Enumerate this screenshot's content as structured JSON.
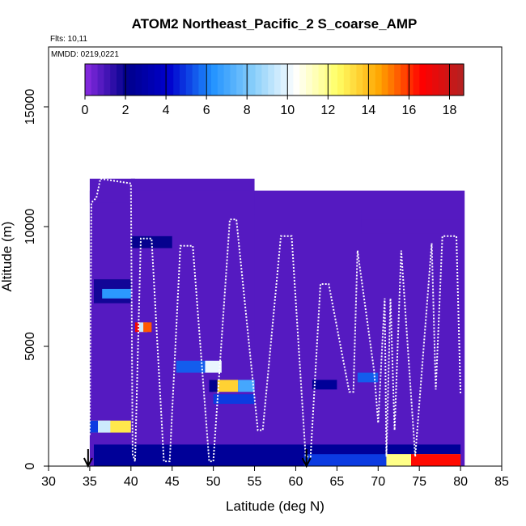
{
  "chart_data": {
    "type": "heatmap",
    "title": "ATOM2 Northeast_Pacific_2 S_coarse_AMP",
    "annotations": [
      "Flts: 10,11",
      "MMDD: 0219,0221"
    ],
    "xlabel": "Latitude (deg N)",
    "ylabel": "Altitude (m)",
    "xlim": [
      30,
      85
    ],
    "ylim": [
      0,
      17500
    ],
    "x_ticks": [
      "30",
      "35",
      "40",
      "45",
      "50",
      "55",
      "60",
      "65",
      "70",
      "75",
      "80",
      "85"
    ],
    "y_ticks": [
      "0",
      "5000",
      "10000",
      "15000"
    ],
    "colorbar": {
      "min": 0,
      "max": 18.7,
      "ticks": [
        "0",
        "2",
        "4",
        "6",
        "8",
        "10",
        "12",
        "14",
        "16",
        "18"
      ],
      "colors": [
        "#8a2be2",
        "#00008b",
        "#0000cd",
        "#1e90ff",
        "#87cefa",
        "#ffffff",
        "#ffff66",
        "#ffa500",
        "#ff0000",
        "#b22222"
      ]
    },
    "background_value": 0.8,
    "regions": [
      {
        "lat": [
          35.0,
          40.5
        ],
        "alt": [
          11000,
          12000
        ],
        "value": 0.8
      },
      {
        "lat": [
          40.5,
          55.0
        ],
        "alt": [
          10500,
          11500
        ],
        "value": 0.8
      },
      {
        "lat": [
          55.0,
          68.0
        ],
        "alt": [
          10000,
          10700
        ],
        "value": 0.8
      },
      {
        "lat": [
          68.0,
          80.0
        ],
        "alt": [
          9700,
          10300
        ],
        "value": 0.8
      },
      {
        "lat": [
          40.0,
          45.0
        ],
        "alt": [
          9100,
          9600
        ],
        "value": 2.0
      },
      {
        "lat": [
          35.5,
          40.0
        ],
        "alt": [
          6800,
          7800
        ],
        "value": 1.8
      },
      {
        "lat": [
          36.5,
          40.0
        ],
        "alt": [
          7000,
          7400
        ],
        "value": 6.5
      },
      {
        "lat": [
          40.5,
          42.5
        ],
        "alt": [
          5600,
          6000
        ],
        "value": 17.0
      },
      {
        "lat": [
          41.0,
          42.0
        ],
        "alt": [
          5600,
          6000
        ],
        "value": 9.5
      },
      {
        "lat": [
          41.5,
          42.5
        ],
        "alt": [
          5600,
          6000
        ],
        "value": 15.5
      },
      {
        "lat": [
          45.5,
          50.0
        ],
        "alt": [
          3900,
          4400
        ],
        "value": 5.5
      },
      {
        "lat": [
          49.0,
          51.0
        ],
        "alt": [
          3900,
          4400
        ],
        "value": 10.0
      },
      {
        "lat": [
          50.0,
          53.0
        ],
        "alt": [
          3100,
          3600
        ],
        "value": 13.5
      },
      {
        "lat": [
          53.0,
          55.0
        ],
        "alt": [
          3100,
          3600
        ],
        "value": 7.0
      },
      {
        "lat": [
          49.5,
          50.5
        ],
        "alt": [
          3100,
          3600
        ],
        "value": 2.0
      },
      {
        "lat": [
          50.0,
          55.0
        ],
        "alt": [
          2600,
          3000
        ],
        "value": 5.0
      },
      {
        "lat": [
          35.0,
          40.0
        ],
        "alt": [
          1400,
          1900
        ],
        "value": 13.0
      },
      {
        "lat": [
          35.0,
          36.0
        ],
        "alt": [
          1400,
          1900
        ],
        "value": 5.0
      },
      {
        "lat": [
          36.0,
          37.5
        ],
        "alt": [
          1400,
          1900
        ],
        "value": 9.5
      },
      {
        "lat": [
          67.5,
          70.0
        ],
        "alt": [
          3500,
          3900
        ],
        "value": 5.5
      },
      {
        "lat": [
          62.0,
          65.0
        ],
        "alt": [
          3200,
          3600
        ],
        "value": 2.5
      },
      {
        "lat": [
          35.5,
          80.0
        ],
        "alt": [
          0,
          900
        ],
        "value": 2.5
      },
      {
        "lat": [
          61.0,
          71.0
        ],
        "alt": [
          0,
          500
        ],
        "value": 5.0
      },
      {
        "lat": [
          71.0,
          80.0
        ],
        "alt": [
          0,
          500
        ],
        "value": 14.0
      },
      {
        "lat": [
          74.0,
          80.0
        ],
        "alt": [
          0,
          500
        ],
        "value": 16.5
      },
      {
        "lat": [
          71.0,
          74.0
        ],
        "alt": [
          0,
          500
        ],
        "value": 12.0
      }
    ],
    "flight_track": [
      [
        35.0,
        1300
      ],
      [
        35.2,
        11000
      ],
      [
        35.8,
        11200
      ],
      [
        36.3,
        12000
      ],
      [
        40.0,
        11800
      ],
      [
        40.2,
        500
      ],
      [
        40.5,
        200
      ],
      [
        41.2,
        9500
      ],
      [
        42.5,
        9500
      ],
      [
        44.0,
        200
      ],
      [
        44.7,
        200
      ],
      [
        46.0,
        9200
      ],
      [
        47.5,
        9200
      ],
      [
        49.5,
        200
      ],
      [
        50.0,
        200
      ],
      [
        52.0,
        10300
      ],
      [
        52.8,
        10300
      ],
      [
        55.4,
        1500
      ],
      [
        56.0,
        1500
      ],
      [
        58.2,
        9600
      ],
      [
        59.5,
        9600
      ],
      [
        61.2,
        400
      ],
      [
        61.8,
        400
      ],
      [
        63.0,
        7600
      ],
      [
        64.0,
        7600
      ],
      [
        66.5,
        3100
      ],
      [
        67.0,
        3100
      ],
      [
        67.5,
        9000
      ],
      [
        69.5,
        4000
      ],
      [
        70.0,
        1800
      ],
      [
        70.8,
        7000
      ],
      [
        71.0,
        400
      ],
      [
        71.5,
        7000
      ],
      [
        72.0,
        1500
      ],
      [
        72.8,
        9000
      ],
      [
        74.5,
        400
      ],
      [
        76.5,
        9300
      ],
      [
        77.0,
        3200
      ],
      [
        77.8,
        9600
      ],
      [
        79.5,
        9600
      ],
      [
        80.0,
        3000
      ]
    ],
    "arrows": [
      34.8,
      61.3
    ],
    "grid": false
  }
}
